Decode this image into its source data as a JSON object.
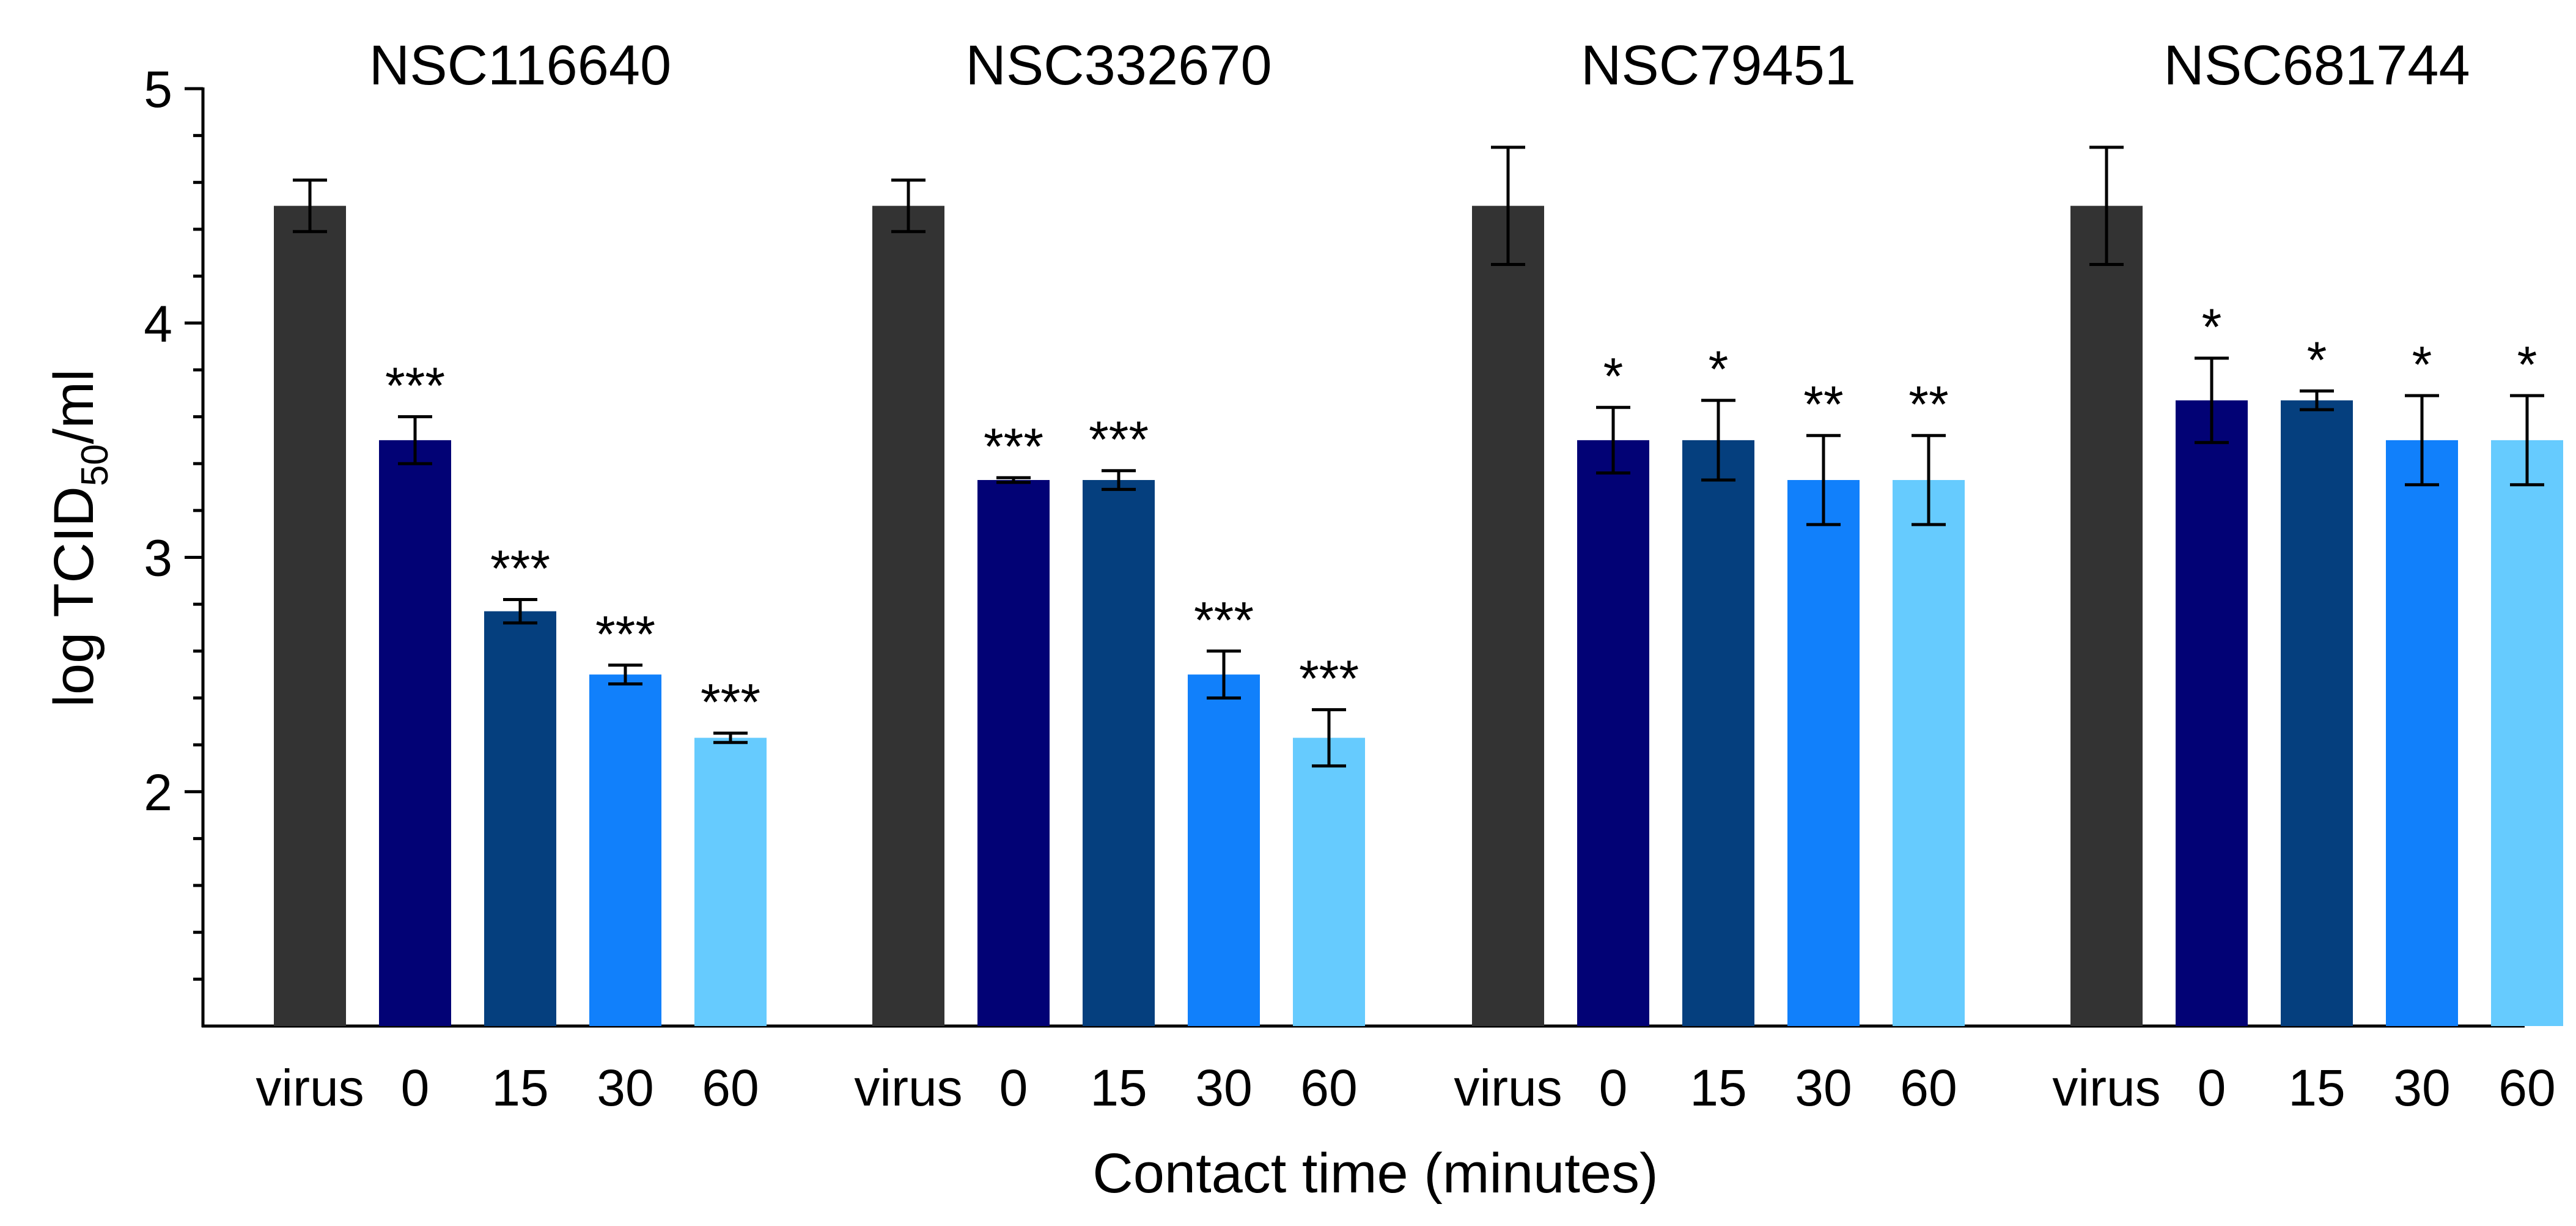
{
  "chart_data": {
    "type": "bar",
    "ylabel_main": "log TCID",
    "ylabel_sub": "50",
    "ylabel_tail": "/ml",
    "xlabel": "Contact time (minutes)",
    "ylim": [
      1,
      5
    ],
    "yticks": [
      2,
      3,
      4,
      5
    ],
    "ytick_labels": [
      "2",
      "3",
      "4",
      "5"
    ],
    "categories": [
      "virus",
      "0",
      "15",
      "30",
      "60"
    ],
    "colors": [
      "#333333",
      "#020275",
      "#053f7e",
      "#1180fb",
      "#66cbfe"
    ],
    "groups": [
      {
        "name": "NSC116640",
        "values": [
          4.5,
          3.5,
          2.77,
          2.5,
          2.23
        ],
        "errors": [
          0.11,
          0.1,
          0.05,
          0.04,
          0.02
        ],
        "sig": [
          "",
          "***",
          "***",
          "***",
          "***"
        ]
      },
      {
        "name": "NSC332670",
        "values": [
          4.5,
          3.33,
          3.33,
          2.5,
          2.23
        ],
        "errors": [
          0.11,
          0.01,
          0.04,
          0.1,
          0.12
        ],
        "sig": [
          "",
          "***",
          "***",
          "***",
          "***"
        ]
      },
      {
        "name": "NSC79451",
        "values": [
          4.5,
          3.5,
          3.5,
          3.33,
          3.33
        ],
        "errors": [
          0.25,
          0.14,
          0.17,
          0.19,
          0.19
        ],
        "sig": [
          "",
          "*",
          "*",
          "**",
          "**"
        ]
      },
      {
        "name": "NSC681744",
        "values": [
          4.5,
          3.67,
          3.67,
          3.5,
          3.5
        ],
        "errors": [
          0.25,
          0.18,
          0.04,
          0.19,
          0.19
        ],
        "sig": [
          "",
          "*",
          "*",
          "*",
          "*"
        ]
      }
    ]
  }
}
